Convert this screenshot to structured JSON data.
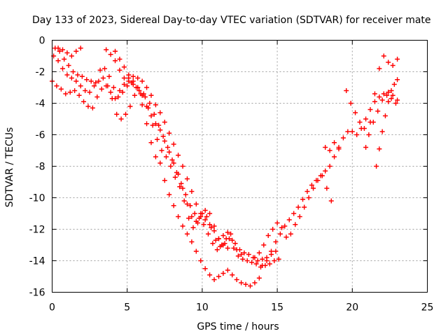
{
  "chart_data": {
    "type": "scatter",
    "title": "Day 133 of 2023, Sidereal Day-to-day VTEC variation (SDTVAR) for receiver mate",
    "xlabel": "GPS time / hours",
    "ylabel": "SDTVAR / TECUs",
    "xlim": [
      0,
      25
    ],
    "ylim": [
      -16,
      0
    ],
    "xticks": [
      0,
      5,
      10,
      15,
      20,
      25
    ],
    "yticks": [
      0,
      -2,
      -4,
      -6,
      -8,
      -10,
      -12,
      -14,
      -16
    ],
    "grid": true,
    "legend": "none",
    "marker": "plus",
    "color": "#ff0000",
    "series": [
      {
        "x": [
          0.0,
          0.3,
          0.6,
          0.9,
          1.2,
          1.5,
          1.8,
          2.1,
          2.4,
          2.7,
          3.0,
          3.3,
          3.6,
          3.9,
          4.2,
          4.5,
          4.8,
          5.1,
          5.4,
          5.7,
          6.0,
          6.3,
          6.6,
          6.9,
          7.2,
          7.5,
          7.8,
          8.1,
          8.4,
          8.7,
          9.0,
          9.3,
          9.6,
          9.9,
          10.2,
          10.5,
          10.8,
          11.1,
          11.4,
          11.7,
          12.0,
          12.3,
          12.6,
          12.9,
          13.2,
          13.5,
          13.8
        ],
        "y": [
          -2.6,
          -2.9,
          -3.1,
          -3.4,
          -3.3,
          -3.2,
          -3.5,
          -3.9,
          -4.2,
          -4.3,
          -3.6,
          -3.1,
          -2.9,
          -3.3,
          -3.7,
          -3.2,
          -2.8,
          -2.4,
          -2.3,
          -3.0,
          -4.1,
          -5.3,
          -6.5,
          -7.4,
          -7.8,
          -8.9,
          -9.8,
          -10.5,
          -11.2,
          -11.8,
          -12.3,
          -12.8,
          -13.4,
          -14.0,
          -14.5,
          -14.9,
          -15.2,
          -15.0,
          -14.8,
          -14.6,
          -14.9,
          -15.2,
          -15.4,
          -15.5,
          -15.6,
          -15.4,
          -15.1
        ]
      },
      {
        "x": [
          0.1,
          0.4,
          0.7,
          1.0,
          1.3,
          1.6,
          1.9,
          2.2,
          2.5,
          2.8,
          3.1,
          3.4,
          3.7,
          4.0,
          4.3,
          4.6,
          4.9,
          5.2,
          5.5,
          5.8,
          6.1,
          6.4,
          6.7,
          7.0,
          7.3,
          7.6,
          7.9,
          8.2,
          8.5,
          8.8,
          9.1,
          9.4,
          9.7,
          10.0,
          10.3,
          10.6,
          10.9,
          11.2,
          11.5,
          11.8,
          12.1,
          12.4,
          12.7,
          13.0,
          13.3,
          13.6,
          13.9,
          14.2,
          14.5,
          14.8,
          15.1
        ],
        "y": [
          -1.0,
          -1.3,
          -1.8,
          -2.2,
          -2.4,
          -2.6,
          -2.9,
          -3.2,
          -3.3,
          -2.9,
          -2.6,
          -2.4,
          -2.9,
          -3.7,
          -4.7,
          -5.0,
          -4.7,
          -4.2,
          -3.5,
          -3.2,
          -3.4,
          -4.3,
          -5.4,
          -6.3,
          -7.0,
          -7.4,
          -8.0,
          -8.7,
          -9.3,
          -10.2,
          -11.3,
          -11.9,
          -11.6,
          -11.0,
          -11.2,
          -11.9,
          -12.7,
          -13.1,
          -12.9,
          -12.6,
          -13.2,
          -13.7,
          -13.9,
          -14.0,
          -14.1,
          -14.2,
          -14.4,
          -14.3,
          -14.2,
          -14.0,
          -13.9
        ]
      },
      {
        "x": [
          0.2,
          0.5,
          0.8,
          1.1,
          1.4,
          1.7,
          2.0,
          2.3,
          2.6,
          2.9,
          3.2,
          3.5,
          3.8,
          4.1,
          4.4,
          4.7,
          5.0,
          5.3,
          5.6,
          5.9,
          6.2,
          6.5,
          6.8,
          7.1,
          7.4,
          7.7,
          8.0,
          8.3,
          8.6,
          8.9,
          9.2,
          9.5,
          9.8,
          10.1,
          10.4,
          10.7,
          11.0,
          11.3,
          11.6,
          11.9,
          12.2,
          12.5,
          12.8,
          13.1,
          13.4,
          13.7,
          14.0,
          14.3,
          14.6,
          14.9
        ],
        "y": [
          -0.5,
          -0.7,
          -1.2,
          -1.6,
          -2.0,
          -2.2,
          -2.3,
          -2.5,
          -2.6,
          -2.7,
          -1.9,
          -1.8,
          -2.3,
          -3.0,
          -3.6,
          -3.3,
          -2.9,
          -2.7,
          -3.0,
          -3.4,
          -3.6,
          -4.0,
          -4.7,
          -5.4,
          -6.1,
          -6.8,
          -7.6,
          -8.4,
          -9.1,
          -9.8,
          -10.5,
          -11.0,
          -11.3,
          -11.7,
          -12.3,
          -12.9,
          -13.3,
          -13.0,
          -12.6,
          -12.3,
          -12.9,
          -13.3,
          -13.5,
          -13.6,
          -13.8,
          -14.0,
          -13.9,
          -13.8,
          -13.6,
          -13.4
        ]
      },
      {
        "x": [
          0.4,
          0.7,
          1.0,
          1.3,
          1.6,
          1.9,
          4.2,
          4.5,
          4.8,
          5.1,
          5.4,
          5.7,
          6.0,
          6.3,
          6.6,
          6.9,
          7.2,
          7.5,
          7.8,
          8.1,
          8.4,
          8.7,
          9.0,
          9.3,
          9.6,
          9.9,
          10.2,
          10.5,
          10.8,
          11.1,
          11.4,
          11.7,
          12.0,
          12.3,
          12.6
        ],
        "y": [
          -0.5,
          -0.6,
          -0.8,
          -1.0,
          -0.7,
          -0.5,
          -0.7,
          -1.2,
          -1.7,
          -2.2,
          -2.8,
          -3.0,
          -3.5,
          -4.2,
          -4.8,
          -5.3,
          -5.7,
          -6.4,
          -7.1,
          -7.8,
          -8.5,
          -9.4,
          -10.4,
          -11.2,
          -11.5,
          -11.2,
          -10.8,
          -11.0,
          -11.8,
          -12.6,
          -12.4,
          -12.2,
          -12.7,
          -13.3,
          -13.6
        ]
      },
      {
        "x": [
          3.6,
          3.9,
          4.2,
          4.5,
          4.8,
          5.1,
          5.4,
          5.7,
          6.0,
          6.3,
          6.6,
          6.9,
          7.2,
          7.5,
          7.8,
          8.1,
          8.4,
          8.7,
          9.0,
          9.3,
          9.6,
          9.9,
          10.2,
          10.5,
          10.8,
          11.1,
          11.4,
          11.7
        ],
        "y": [
          -0.6,
          -0.9,
          -1.3,
          -1.9,
          -2.4,
          -2.6,
          -2.6,
          -2.4,
          -2.6,
          -3.0,
          -3.5,
          -4.1,
          -4.6,
          -5.2,
          -5.9,
          -6.6,
          -7.3,
          -8.0,
          -8.8,
          -9.6,
          -10.4,
          -11.0,
          -11.4,
          -11.7,
          -12.1,
          -12.6,
          -13.0,
          -13.2
        ]
      },
      {
        "x": [
          14.0,
          14.3,
          14.6,
          14.9,
          15.2,
          15.5,
          15.8,
          16.1,
          16.4,
          16.7,
          17.0,
          17.3,
          17.6,
          17.9,
          18.2,
          18.5,
          18.8,
          19.1,
          19.4,
          19.7,
          20.0,
          20.3,
          20.6,
          20.9,
          21.2,
          21.5,
          21.8,
          22.1,
          22.4,
          22.7,
          23.0
        ],
        "y": [
          -14.3,
          -14.0,
          -13.4,
          -12.8,
          -12.3,
          -11.8,
          -11.4,
          -11.0,
          -10.6,
          -10.1,
          -9.6,
          -9.2,
          -8.9,
          -8.6,
          -8.3,
          -8.0,
          -7.4,
          -6.8,
          -6.2,
          -5.8,
          -5.8,
          -6.0,
          -5.6,
          -5.0,
          -4.4,
          -3.9,
          -3.6,
          -3.4,
          -3.3,
          -3.5,
          -3.8
        ]
      },
      {
        "x": [
          13.5,
          13.8,
          14.1,
          14.4,
          14.7,
          15.0,
          15.3,
          15.6,
          15.9,
          16.2,
          16.5,
          16.8,
          17.1,
          17.4,
          17.7,
          18.0,
          18.3,
          18.6
        ],
        "y": [
          -13.8,
          -13.5,
          -13.0,
          -12.4,
          -12.0,
          -11.6,
          -11.9,
          -12.5,
          -12.3,
          -11.7,
          -11.2,
          -10.6,
          -10.0,
          -9.4,
          -8.9,
          -8.6,
          -9.4,
          -10.2
        ]
      },
      {
        "x": [
          19.6,
          19.9,
          20.2,
          20.5,
          20.8,
          21.1,
          21.4,
          21.7,
          22.0,
          22.3,
          22.6,
          22.9
        ],
        "y": [
          -3.2,
          -4.0,
          -4.6,
          -5.2,
          -5.6,
          -6.0,
          -5.2,
          -4.5,
          -3.8,
          -3.5,
          -3.7,
          -4.0
        ]
      },
      {
        "x": [
          20.9,
          21.2,
          21.5,
          21.8,
          22.1,
          22.4,
          22.7,
          23.0
        ],
        "y": [
          -6.8,
          -5.2,
          -3.4,
          -1.8,
          -1.0,
          -1.4,
          -1.6,
          -1.2
        ]
      },
      {
        "x": [
          21.6,
          21.8,
          22.0,
          22.2,
          22.4,
          22.6,
          22.8,
          23.0
        ],
        "y": [
          -8.0,
          -6.9,
          -5.8,
          -4.8,
          -3.9,
          -3.2,
          -2.8,
          -2.5
        ]
      },
      {
        "x": [
          18.2,
          18.5,
          18.8,
          19.1
        ],
        "y": [
          -6.8,
          -7.0,
          -6.5,
          -6.9
        ]
      }
    ]
  }
}
